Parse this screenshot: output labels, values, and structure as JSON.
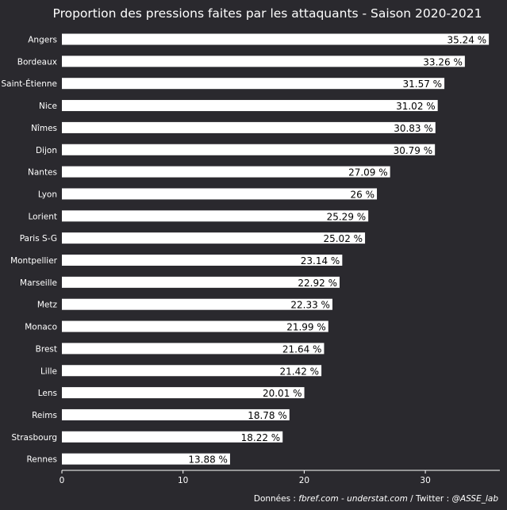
{
  "chart_data": {
    "type": "bar",
    "orientation": "horizontal",
    "title": "Proportion des pressions faites par les attaquants - Saison 2020-2021",
    "xlabel": "",
    "ylabel": "",
    "xlim": [
      0,
      36.5
    ],
    "xticks": [
      0,
      10,
      20,
      30
    ],
    "grid": false,
    "bar_color": "#ffffff",
    "categories": [
      "Angers",
      "Bordeaux",
      "Saint-Étienne",
      "Nice",
      "Nîmes",
      "Dijon",
      "Nantes",
      "Lyon",
      "Lorient",
      "Paris S-G",
      "Montpellier",
      "Marseille",
      "Metz",
      "Monaco",
      "Brest",
      "Lille",
      "Lens",
      "Reims",
      "Strasbourg",
      "Rennes"
    ],
    "values": [
      35.24,
      33.26,
      31.57,
      31.02,
      30.83,
      30.79,
      27.09,
      26,
      25.29,
      25.02,
      23.14,
      22.92,
      22.33,
      21.99,
      21.64,
      21.42,
      20.01,
      18.78,
      18.22,
      13.88
    ],
    "data_labels": [
      "35.24 %",
      "33.26 %",
      "31.57 %",
      "31.02 %",
      "30.83 %",
      "30.79 %",
      "27.09 %",
      "26 %",
      "25.29 %",
      "25.02 %",
      "23.14 %",
      "22.92 %",
      "22.33 %",
      "21.99 %",
      "21.64 %",
      "21.42 %",
      "20.01 %",
      "18.78 %",
      "18.22 %",
      "13.88 %"
    ],
    "caption": {
      "prefix": "Données : ",
      "source": "fbref.com - understat.com",
      "middle": " / Twitter : ",
      "handle": "@ASSE_lab"
    }
  }
}
